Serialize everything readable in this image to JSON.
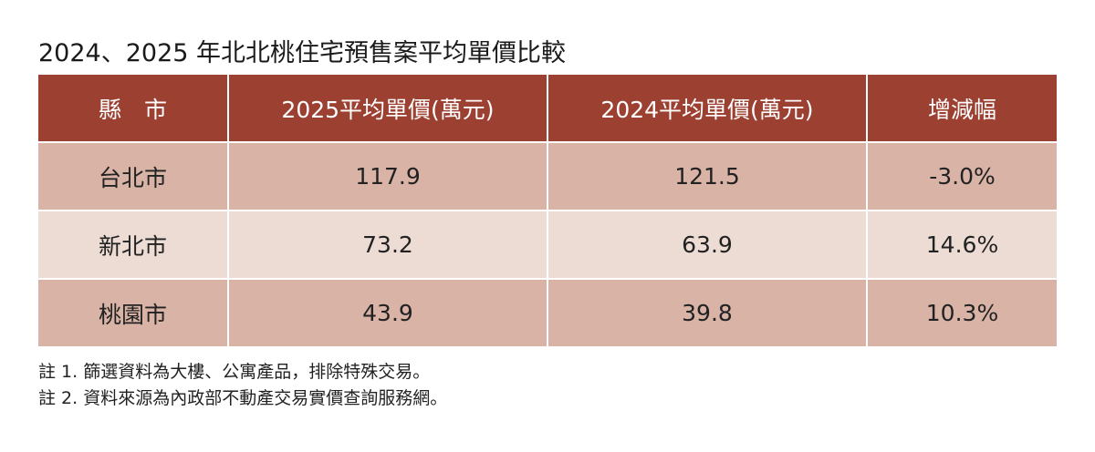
{
  "header": {
    "title": "2024、2025 年北北桃住宅預售案平均單價比較"
  },
  "table": {
    "headers": [
      "縣　市",
      "2025平均單價(萬元)",
      "2024平均單價(萬元)",
      "增減幅"
    ],
    "rows": [
      [
        "台北市",
        "117.9",
        "121.5",
        "-3.0%"
      ],
      [
        "新北市",
        "73.2",
        "63.9",
        "14.6%"
      ],
      [
        "桃園市",
        "43.9",
        "39.8",
        "10.3%"
      ]
    ]
  },
  "notes": [
    "註 1. 篩選資料為大樓、公寓產品，排除特殊交易。",
    "註 2. 資料來源為內政部不動產交易實價查詢服務網。"
  ]
}
